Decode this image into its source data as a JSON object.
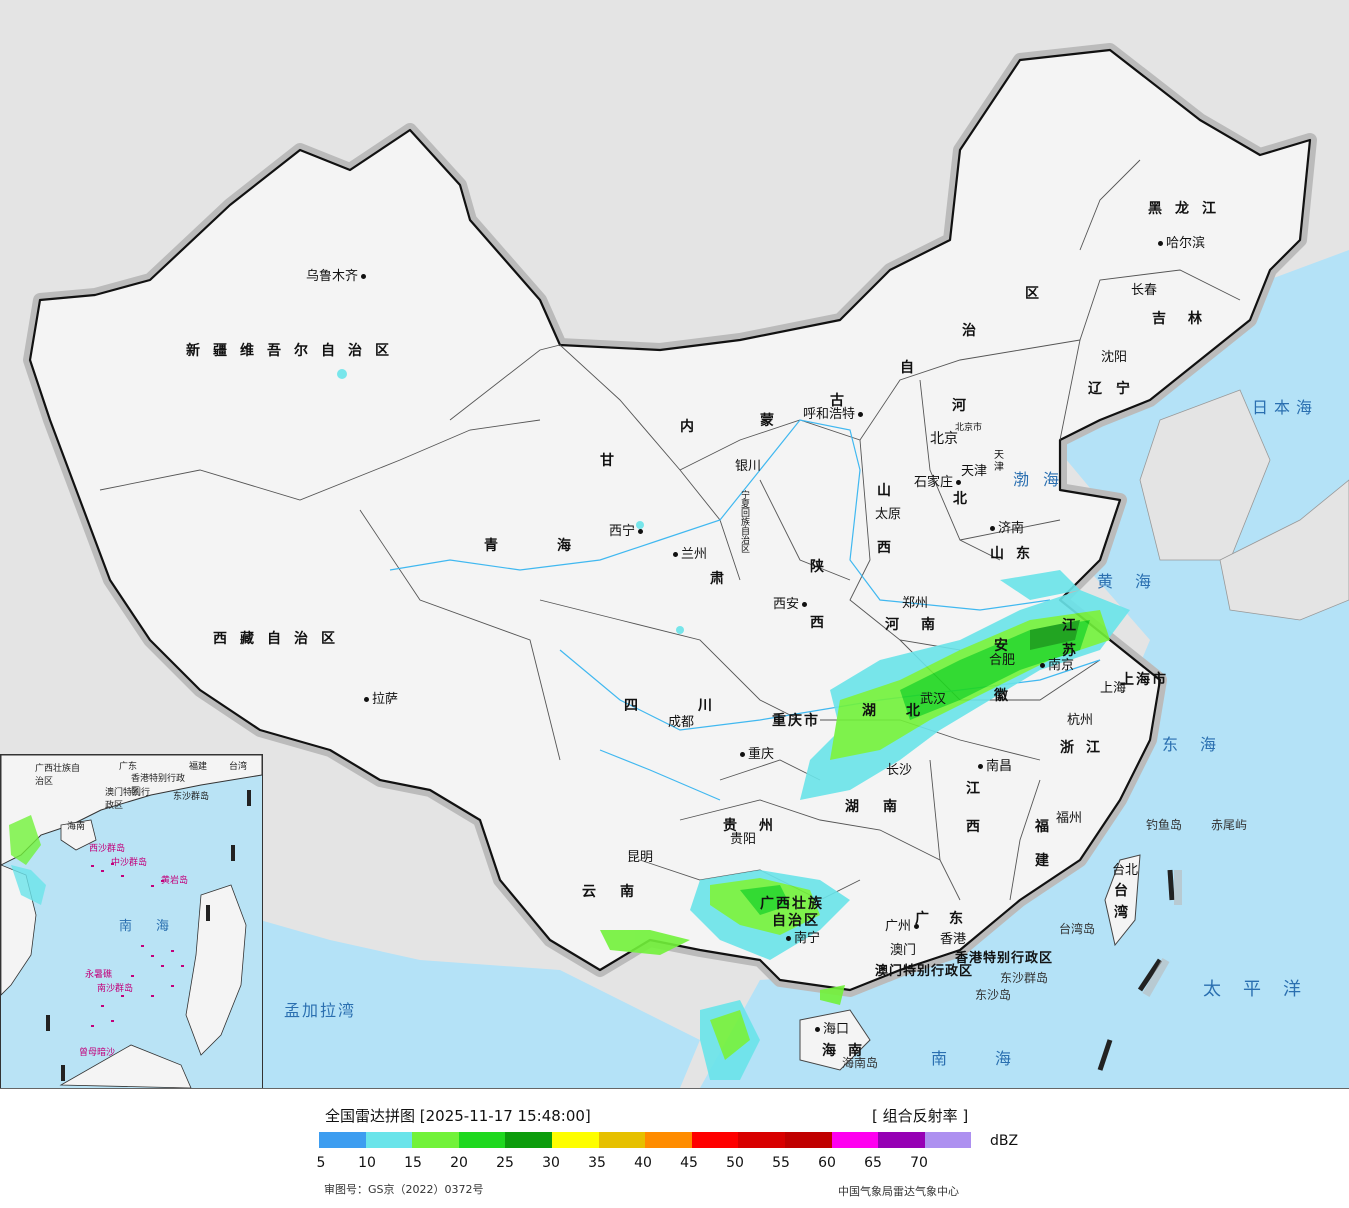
{
  "title": "全国雷达拼图 [2025-11-17 15:48:00]",
  "product": "[ 组合反射率 ]",
  "legend": {
    "unit": "dBZ",
    "ticks": [
      "5",
      "10",
      "15",
      "20",
      "25",
      "30",
      "35",
      "40",
      "45",
      "50",
      "55",
      "60",
      "65",
      "70"
    ],
    "colors": [
      "#3d9df0",
      "#6ae4ea",
      "#72f23a",
      "#1fd81f",
      "#0c9c0c",
      "#fefe00",
      "#e6c000",
      "#ff8c00",
      "#ff0000",
      "#d80000",
      "#c00000",
      "#ff00f0",
      "#9600b4",
      "#ad90f0"
    ]
  },
  "approval": "审图号：GS京（2022）0372号",
  "source": "中国气象局雷达气象中心",
  "provinces": [
    {
      "id": "xinjiang",
      "text": "新疆维吾尔自治区"
    },
    {
      "id": "xizang",
      "text": "西藏自治区"
    },
    {
      "id": "qinghai-a",
      "text": "青"
    },
    {
      "id": "qinghai-b",
      "text": "海"
    },
    {
      "id": "gansu-a",
      "text": "甘"
    },
    {
      "id": "gansu-b",
      "text": "肃"
    },
    {
      "id": "neimenggu-a",
      "text": "内"
    },
    {
      "id": "neimenggu-b",
      "text": "蒙"
    },
    {
      "id": "neimenggu-c",
      "text": "古"
    },
    {
      "id": "neimenggu-d",
      "text": "自"
    },
    {
      "id": "neimenggu-e",
      "text": "治"
    },
    {
      "id": "neimenggu-f",
      "text": "区"
    },
    {
      "id": "heilongjiang",
      "text": "黑龙江"
    },
    {
      "id": "jilin",
      "text": "吉林"
    },
    {
      "id": "liaoning",
      "text": "辽宁"
    },
    {
      "id": "hebei-a",
      "text": "河"
    },
    {
      "id": "hebei-b",
      "text": "北"
    },
    {
      "id": "shanxi-a",
      "text": "山"
    },
    {
      "id": "shanxi-b",
      "text": "西"
    },
    {
      "id": "shandong",
      "text": "山东"
    },
    {
      "id": "henan",
      "text": "河南"
    },
    {
      "id": "shaanxi-a",
      "text": "陕"
    },
    {
      "id": "shaanxi-b",
      "text": "西"
    },
    {
      "id": "sichuan",
      "text": "四川"
    },
    {
      "id": "chongqing",
      "text": "重庆市"
    },
    {
      "id": "hubei",
      "text": "湖北"
    },
    {
      "id": "anhui-a",
      "text": "安"
    },
    {
      "id": "anhui-b",
      "text": "徽"
    },
    {
      "id": "jiangsu-a",
      "text": "江"
    },
    {
      "id": "jiangsu-b",
      "text": "苏"
    },
    {
      "id": "shanghai",
      "text": "上海市"
    },
    {
      "id": "zhejiang",
      "text": "浙江"
    },
    {
      "id": "jiangxi-a",
      "text": "江"
    },
    {
      "id": "jiangxi-b",
      "text": "西"
    },
    {
      "id": "hunan",
      "text": "湖南"
    },
    {
      "id": "guizhou",
      "text": "贵州"
    },
    {
      "id": "yunnan",
      "text": "云南"
    },
    {
      "id": "guangxi-a",
      "text": "广西壮族"
    },
    {
      "id": "guangxi-b",
      "text": "自治区"
    },
    {
      "id": "guangdong",
      "text": "广东"
    },
    {
      "id": "fujian-a",
      "text": "福"
    },
    {
      "id": "fujian-b",
      "text": "建"
    },
    {
      "id": "taiwan-a",
      "text": "台"
    },
    {
      "id": "taiwan-b",
      "text": "湾"
    },
    {
      "id": "hainan",
      "text": "海南"
    },
    {
      "id": "hongkong",
      "text": "香港特别行政区"
    },
    {
      "id": "macau",
      "text": "澳门特别行政区"
    },
    {
      "id": "ningxia",
      "text": "宁夏回族自治区"
    },
    {
      "id": "tianjin-a",
      "text": "天"
    },
    {
      "id": "tianjin-b",
      "text": "津"
    },
    {
      "id": "beijing-city",
      "text": "北京市"
    }
  ],
  "cities": [
    {
      "id": "urumqi",
      "text": "乌鲁木齐"
    },
    {
      "id": "lhasa",
      "text": "拉萨"
    },
    {
      "id": "xining",
      "text": "西宁"
    },
    {
      "id": "lanzhou",
      "text": "兰州"
    },
    {
      "id": "yinchuan",
      "text": "银川"
    },
    {
      "id": "hohhot",
      "text": "呼和浩特"
    },
    {
      "id": "beijing",
      "text": "北京"
    },
    {
      "id": "tianjin",
      "text": "天津"
    },
    {
      "id": "shijiazhuang",
      "text": "石家庄"
    },
    {
      "id": "taiyuan",
      "text": "太原"
    },
    {
      "id": "jinan",
      "text": "济南"
    },
    {
      "id": "zhengzhou",
      "text": "郑州"
    },
    {
      "id": "xian",
      "text": "西安"
    },
    {
      "id": "chengdu",
      "text": "成都"
    },
    {
      "id": "chongqing",
      "text": "重庆"
    },
    {
      "id": "wuhan",
      "text": "武汉"
    },
    {
      "id": "hefei",
      "text": "合肥"
    },
    {
      "id": "nanjing",
      "text": "南京"
    },
    {
      "id": "shanghai",
      "text": "上海"
    },
    {
      "id": "hangzhou",
      "text": "杭州"
    },
    {
      "id": "nanchang",
      "text": "南昌"
    },
    {
      "id": "changsha",
      "text": "长沙"
    },
    {
      "id": "guiyang",
      "text": "贵阳"
    },
    {
      "id": "kunming",
      "text": "昆明"
    },
    {
      "id": "nanning",
      "text": "南宁"
    },
    {
      "id": "guangzhou",
      "text": "广州"
    },
    {
      "id": "hongkong",
      "text": "香港"
    },
    {
      "id": "macau",
      "text": "澳门"
    },
    {
      "id": "fuzhou",
      "text": "福州"
    },
    {
      "id": "taibei",
      "text": "台北"
    },
    {
      "id": "haikou",
      "text": "海口"
    },
    {
      "id": "shenyang",
      "text": "沈阳"
    },
    {
      "id": "changchun",
      "text": "长春"
    },
    {
      "id": "harbin",
      "text": "哈尔滨"
    }
  ],
  "seas": [
    {
      "id": "riben-hai",
      "text": "日本海"
    },
    {
      "id": "bohai",
      "text": "渤海"
    },
    {
      "id": "huanghai",
      "text": "黄海"
    },
    {
      "id": "donghai",
      "text": "东海"
    },
    {
      "id": "taipingyang",
      "text": "太平洋"
    },
    {
      "id": "nanhai",
      "text": "南海"
    },
    {
      "id": "mengjiala-wan",
      "text": "孟加拉湾"
    }
  ],
  "islands": [
    {
      "id": "diaoyu",
      "text": "钓鱼岛"
    },
    {
      "id": "chiwei",
      "text": "赤尾屿"
    },
    {
      "id": "taiwan-island",
      "text": "台湾岛"
    },
    {
      "id": "dongsha-qundao",
      "text": "东沙群岛"
    },
    {
      "id": "dongsha-dao",
      "text": "东沙岛"
    },
    {
      "id": "hainan-island",
      "text": "海南岛"
    }
  ],
  "inset": {
    "labels": [
      {
        "id": "i-guangxi",
        "text": "广西壮族自治区"
      },
      {
        "id": "i-guangdong",
        "text": "广东"
      },
      {
        "id": "i-fujian",
        "text": "福建"
      },
      {
        "id": "i-taiwan",
        "text": "台湾"
      },
      {
        "id": "i-hk",
        "text": "香港特别行政区"
      },
      {
        "id": "i-macau",
        "text": "澳门特别行政区"
      },
      {
        "id": "i-dongsha",
        "text": "东沙群岛"
      },
      {
        "id": "i-hainan",
        "text": "海南"
      },
      {
        "id": "i-sea",
        "text": "南海"
      }
    ],
    "pink_labels": [
      {
        "id": "i-xisha",
        "text": "西沙群岛"
      },
      {
        "id": "i-zhongsha",
        "text": "中沙群岛"
      },
      {
        "id": "i-huangyan",
        "text": "黄岩岛"
      },
      {
        "id": "i-yongshu",
        "text": "永暑礁"
      },
      {
        "id": "i-nansha",
        "text": "南沙群岛"
      },
      {
        "id": "i-zengmu",
        "text": "曾母暗沙"
      }
    ]
  }
}
